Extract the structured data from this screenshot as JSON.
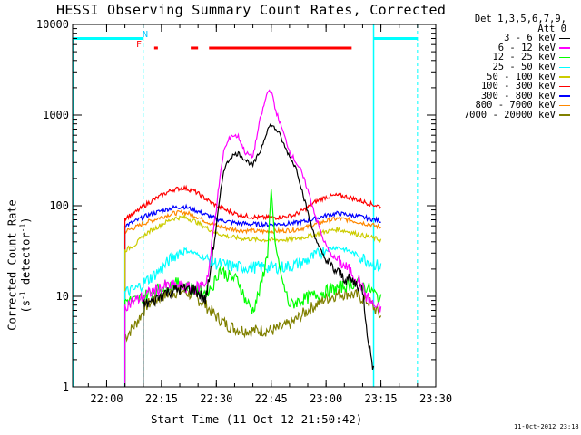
{
  "chart_data": {
    "type": "line",
    "title": "HESSI Observing Summary Count Rates, Corrected",
    "xlabel": "Start Time (11-Oct-12 21:50:42)",
    "ylabel_main": "Corrected Count Rate (s",
    "ylabel_sup1": "-1",
    "ylabel_mid": " detector",
    "ylabel_sup2": "-1",
    "ylabel_end": ")",
    "yscale": "log",
    "ylim": [
      1,
      10000
    ],
    "xlim_minutes": [
      "21:50:42",
      "23:30"
    ],
    "x_ticks": [
      "22:00",
      "22:15",
      "22:30",
      "22:45",
      "23:00",
      "23:15",
      "23:30"
    ],
    "y_ticks": [
      "1",
      "10",
      "100",
      "1000",
      "10000"
    ],
    "legend_header": [
      "Det 1,3,5,6,7,9,",
      "Att 0"
    ],
    "legend_placement": "right",
    "timestamp": "11-Oct-2012 23:18",
    "annotations": {
      "night_marker": "N",
      "flare_marker": "F"
    },
    "night_periods": [
      [
        "21:50:42",
        "22:10"
      ],
      [
        "23:13",
        "23:25"
      ]
    ],
    "flare_flags": [
      [
        "22:13",
        "22:14"
      ],
      [
        "22:23",
        "22:25"
      ],
      [
        "22:28",
        "23:07"
      ]
    ],
    "series": [
      {
        "name": "3 - 6 keV",
        "color": "#000000",
        "points": [
          [
            "22:10",
            8
          ],
          [
            "22:13",
            9
          ],
          [
            "22:16",
            11
          ],
          [
            "22:20",
            12
          ],
          [
            "22:24",
            12
          ],
          [
            "22:27",
            9
          ],
          [
            "22:28",
            15
          ],
          [
            "22:30",
            60
          ],
          [
            "22:32",
            250
          ],
          [
            "22:34",
            350
          ],
          [
            "22:36",
            380
          ],
          [
            "22:38",
            320
          ],
          [
            "22:40",
            280
          ],
          [
            "22:42",
            400
          ],
          [
            "22:44",
            700
          ],
          [
            "22:45",
            780
          ],
          [
            "22:47",
            650
          ],
          [
            "22:49",
            420
          ],
          [
            "22:52",
            250
          ],
          [
            "22:54",
            120
          ],
          [
            "22:56",
            60
          ],
          [
            "22:58",
            35
          ],
          [
            "23:00",
            25
          ],
          [
            "23:02",
            20
          ],
          [
            "23:05",
            16
          ],
          [
            "23:08",
            14
          ],
          [
            "23:10",
            12
          ],
          [
            "23:11",
            5
          ],
          [
            "23:12",
            2.5
          ],
          [
            "23:13",
            1.6
          ]
        ]
      },
      {
        "name": "6 - 12 keV",
        "color": "#ff00ff",
        "points": [
          [
            "22:05",
            8
          ],
          [
            "22:08",
            9
          ],
          [
            "22:12",
            11
          ],
          [
            "22:16",
            13
          ],
          [
            "22:20",
            13
          ],
          [
            "22:24",
            12
          ],
          [
            "22:27",
            14
          ],
          [
            "22:28",
            20
          ],
          [
            "22:30",
            100
          ],
          [
            "22:32",
            400
          ],
          [
            "22:34",
            600
          ],
          [
            "22:36",
            580
          ],
          [
            "22:38",
            380
          ],
          [
            "22:40",
            350
          ],
          [
            "22:42",
            900
          ],
          [
            "22:44",
            1800
          ],
          [
            "22:45",
            1900
          ],
          [
            "22:46",
            1200
          ],
          [
            "22:48",
            700
          ],
          [
            "22:50",
            400
          ],
          [
            "22:53",
            250
          ],
          [
            "22:55",
            150
          ],
          [
            "22:57",
            80
          ],
          [
            "22:59",
            45
          ],
          [
            "23:01",
            30
          ],
          [
            "23:03",
            25
          ],
          [
            "23:06",
            20
          ],
          [
            "23:09",
            15
          ],
          [
            "23:11",
            10
          ],
          [
            "23:13",
            8
          ],
          [
            "23:15",
            7
          ]
        ]
      },
      {
        "name": "12 - 25 keV",
        "color": "#00ff00",
        "points": [
          [
            "22:05",
            9
          ],
          [
            "22:08",
            9
          ],
          [
            "22:12",
            11
          ],
          [
            "22:16",
            13
          ],
          [
            "22:20",
            14
          ],
          [
            "22:24",
            12
          ],
          [
            "22:27",
            11
          ],
          [
            "22:29",
            13
          ],
          [
            "22:31",
            20
          ],
          [
            "22:33",
            17
          ],
          [
            "22:36",
            15
          ],
          [
            "22:38",
            9
          ],
          [
            "22:40",
            7
          ],
          [
            "22:42",
            12
          ],
          [
            "22:44",
            30
          ],
          [
            "22:45",
            150
          ],
          [
            "22:46",
            40
          ],
          [
            "22:48",
            15
          ],
          [
            "22:50",
            8
          ],
          [
            "22:53",
            9
          ],
          [
            "22:56",
            10
          ],
          [
            "22:59",
            11
          ],
          [
            "23:02",
            12
          ],
          [
            "23:05",
            13
          ],
          [
            "23:08",
            14
          ],
          [
            "23:10",
            13
          ],
          [
            "23:12",
            12
          ],
          [
            "23:14",
            10
          ],
          [
            "23:15",
            9
          ]
        ]
      },
      {
        "name": "25 - 50 keV",
        "color": "#00ffff",
        "points": [
          [
            "22:05",
            11
          ],
          [
            "22:08",
            12
          ],
          [
            "22:11",
            15
          ],
          [
            "22:15",
            20
          ],
          [
            "22:18",
            27
          ],
          [
            "22:21",
            33
          ],
          [
            "22:24",
            30
          ],
          [
            "22:27",
            26
          ],
          [
            "22:30",
            23
          ],
          [
            "22:33",
            22
          ],
          [
            "22:36",
            21
          ],
          [
            "22:39",
            21
          ],
          [
            "22:42",
            21
          ],
          [
            "22:45",
            21
          ],
          [
            "22:48",
            21
          ],
          [
            "22:51",
            22
          ],
          [
            "22:54",
            24
          ],
          [
            "22:57",
            28
          ],
          [
            "23:00",
            33
          ],
          [
            "23:03",
            35
          ],
          [
            "23:06",
            32
          ],
          [
            "23:09",
            28
          ],
          [
            "23:12",
            24
          ],
          [
            "23:15",
            21
          ]
        ]
      },
      {
        "name": "50 - 100 keV",
        "color": "#cccc00",
        "points": [
          [
            "22:05",
            32
          ],
          [
            "22:08",
            38
          ],
          [
            "22:11",
            50
          ],
          [
            "22:15",
            62
          ],
          [
            "22:18",
            72
          ],
          [
            "22:21",
            75
          ],
          [
            "22:24",
            68
          ],
          [
            "22:27",
            58
          ],
          [
            "22:30",
            50
          ],
          [
            "22:33",
            46
          ],
          [
            "22:36",
            44
          ],
          [
            "22:39",
            43
          ],
          [
            "22:42",
            42
          ],
          [
            "22:45",
            42
          ],
          [
            "22:48",
            42
          ],
          [
            "22:51",
            43
          ],
          [
            "22:54",
            45
          ],
          [
            "22:57",
            48
          ],
          [
            "23:00",
            52
          ],
          [
            "23:03",
            55
          ],
          [
            "23:06",
            52
          ],
          [
            "23:09",
            48
          ],
          [
            "23:12",
            45
          ],
          [
            "23:15",
            42
          ]
        ]
      },
      {
        "name": "100 - 300 keV",
        "color": "#ff0000",
        "points": [
          [
            "22:05",
            73
          ],
          [
            "22:08",
            85
          ],
          [
            "22:11",
            105
          ],
          [
            "22:15",
            130
          ],
          [
            "22:18",
            150
          ],
          [
            "22:21",
            158
          ],
          [
            "22:24",
            145
          ],
          [
            "22:27",
            120
          ],
          [
            "22:30",
            100
          ],
          [
            "22:33",
            88
          ],
          [
            "22:36",
            80
          ],
          [
            "22:39",
            76
          ],
          [
            "22:42",
            74
          ],
          [
            "22:45",
            74
          ],
          [
            "22:48",
            75
          ],
          [
            "22:51",
            78
          ],
          [
            "22:54",
            90
          ],
          [
            "22:57",
            110
          ],
          [
            "23:00",
            125
          ],
          [
            "23:03",
            130
          ],
          [
            "23:06",
            125
          ],
          [
            "23:09",
            115
          ],
          [
            "23:12",
            105
          ],
          [
            "23:15",
            98
          ]
        ]
      },
      {
        "name": "300 - 800 keV",
        "color": "#0000ff",
        "points": [
          [
            "22:05",
            60
          ],
          [
            "22:08",
            68
          ],
          [
            "22:11",
            78
          ],
          [
            "22:15",
            88
          ],
          [
            "22:18",
            95
          ],
          [
            "22:21",
            98
          ],
          [
            "22:24",
            90
          ],
          [
            "22:27",
            80
          ],
          [
            "22:30",
            72
          ],
          [
            "22:33",
            67
          ],
          [
            "22:36",
            64
          ],
          [
            "22:39",
            63
          ],
          [
            "22:42",
            62
          ],
          [
            "22:45",
            62
          ],
          [
            "22:48",
            63
          ],
          [
            "22:51",
            64
          ],
          [
            "22:54",
            67
          ],
          [
            "22:57",
            72
          ],
          [
            "23:00",
            78
          ],
          [
            "23:03",
            82
          ],
          [
            "23:06",
            80
          ],
          [
            "23:09",
            76
          ],
          [
            "23:12",
            72
          ],
          [
            "23:15",
            68
          ]
        ]
      },
      {
        "name": "800 - 7000 keV",
        "color": "#ff8800",
        "points": [
          [
            "22:05",
            52
          ],
          [
            "22:08",
            58
          ],
          [
            "22:11",
            66
          ],
          [
            "22:15",
            75
          ],
          [
            "22:18",
            82
          ],
          [
            "22:21",
            85
          ],
          [
            "22:24",
            78
          ],
          [
            "22:27",
            68
          ],
          [
            "22:30",
            60
          ],
          [
            "22:33",
            56
          ],
          [
            "22:36",
            54
          ],
          [
            "22:39",
            53
          ],
          [
            "22:42",
            52
          ],
          [
            "22:45",
            52
          ],
          [
            "22:48",
            53
          ],
          [
            "22:51",
            54
          ],
          [
            "22:54",
            57
          ],
          [
            "22:57",
            62
          ],
          [
            "23:00",
            68
          ],
          [
            "23:03",
            72
          ],
          [
            "23:06",
            70
          ],
          [
            "23:09",
            66
          ],
          [
            "23:12",
            62
          ],
          [
            "23:15",
            58
          ]
        ]
      },
      {
        "name": "7000 - 20000 keV",
        "color": "#808000",
        "points": [
          [
            "22:05",
            3.5
          ],
          [
            "22:08",
            5
          ],
          [
            "22:11",
            8
          ],
          [
            "22:15",
            10
          ],
          [
            "22:18",
            11
          ],
          [
            "22:21",
            11.5
          ],
          [
            "22:24",
            10
          ],
          [
            "22:27",
            8
          ],
          [
            "22:30",
            6
          ],
          [
            "22:33",
            4.8
          ],
          [
            "22:36",
            4.3
          ],
          [
            "22:39",
            4.2
          ],
          [
            "22:42",
            4.2
          ],
          [
            "22:45",
            4.2
          ],
          [
            "22:48",
            4.5
          ],
          [
            "22:51",
            5.2
          ],
          [
            "22:54",
            6.5
          ],
          [
            "22:57",
            8
          ],
          [
            "23:00",
            9.5
          ],
          [
            "23:03",
            10.5
          ],
          [
            "23:06",
            10.8
          ],
          [
            "23:09",
            10
          ],
          [
            "23:12",
            8.5
          ],
          [
            "23:15",
            6
          ]
        ]
      }
    ]
  }
}
